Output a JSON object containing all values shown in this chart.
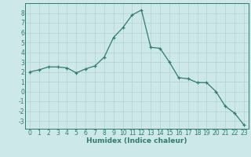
{
  "x": [
    0,
    1,
    2,
    3,
    4,
    5,
    6,
    7,
    8,
    9,
    10,
    11,
    12,
    13,
    14,
    15,
    16,
    17,
    18,
    19,
    20,
    21,
    22,
    23
  ],
  "y": [
    2.0,
    2.2,
    2.5,
    2.5,
    2.4,
    1.9,
    2.3,
    2.6,
    3.5,
    5.5,
    6.5,
    7.8,
    8.3,
    4.5,
    4.4,
    3.0,
    1.4,
    1.3,
    0.9,
    0.9,
    0.0,
    -1.5,
    -2.2,
    -3.4
  ],
  "line_color": "#2e7d6e",
  "marker": "+",
  "bg_color": "#cce8e8",
  "grid_color": "#b8d4d4",
  "xlabel": "Humidex (Indice chaleur)",
  "ylim": [
    -3.8,
    9.0
  ],
  "xlim": [
    -0.5,
    23.5
  ],
  "yticks": [
    -3,
    -2,
    -1,
    0,
    1,
    2,
    3,
    4,
    5,
    6,
    7,
    8
  ],
  "xticks": [
    0,
    1,
    2,
    3,
    4,
    5,
    6,
    7,
    8,
    9,
    10,
    11,
    12,
    13,
    14,
    15,
    16,
    17,
    18,
    19,
    20,
    21,
    22,
    23
  ],
  "tick_color": "#2e7d6e",
  "label_fontsize": 6.5,
  "tick_fontsize": 5.5,
  "linewidth": 0.9,
  "markersize": 3.5,
  "markeredgewidth": 0.9
}
